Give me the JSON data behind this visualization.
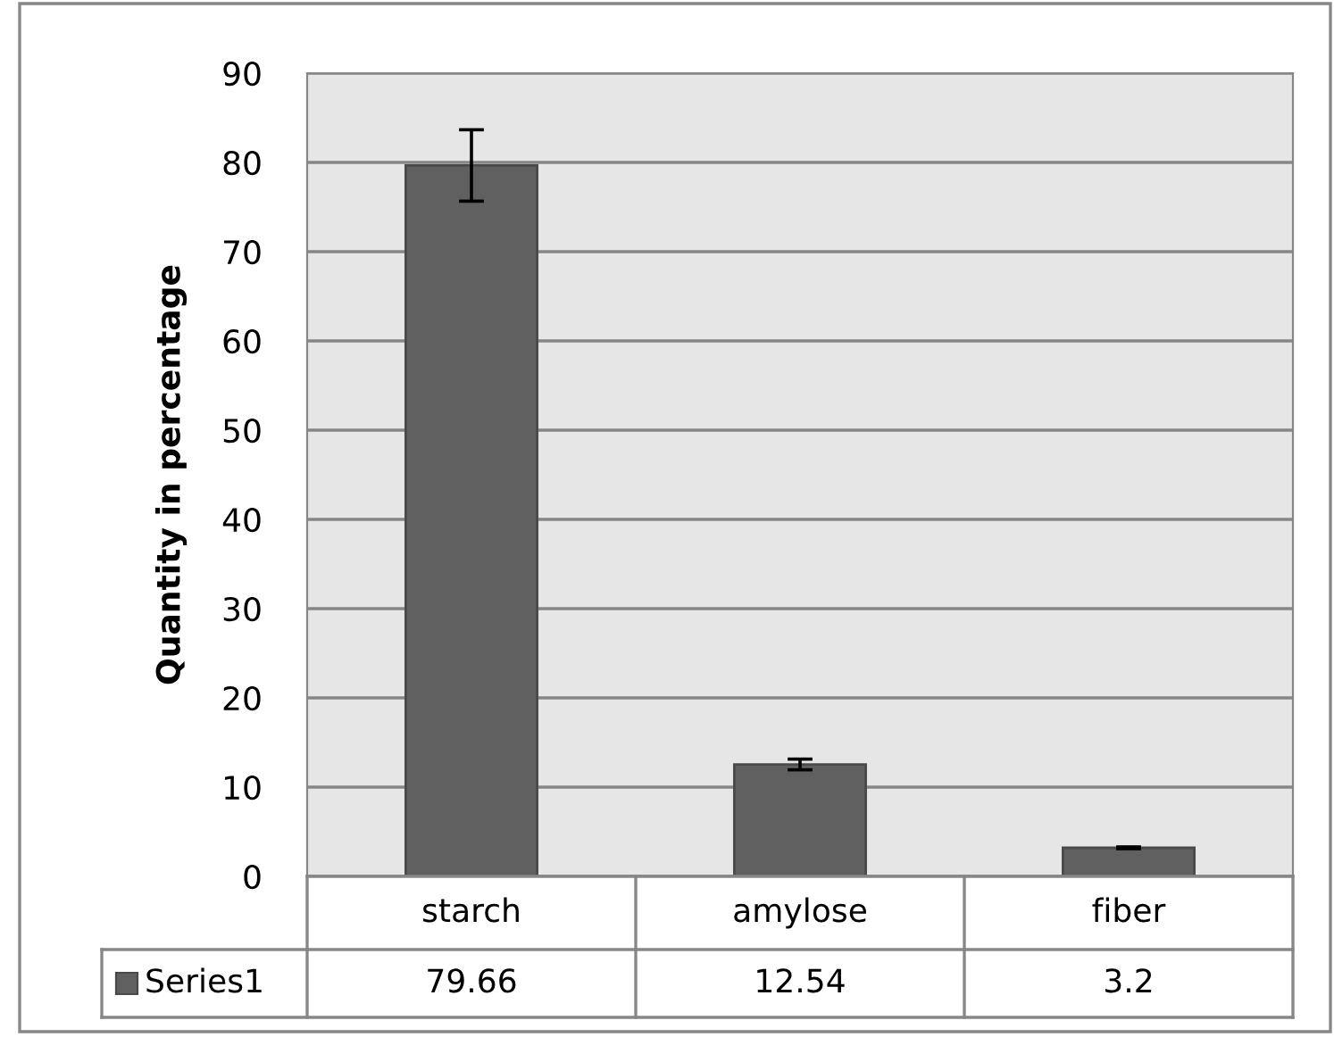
{
  "chart_data": {
    "type": "bar",
    "ylabel": "Quantity in percentage",
    "categories": [
      "starch",
      "amylose",
      "fiber"
    ],
    "series": [
      {
        "name": "Series1",
        "color": "#606060",
        "values": [
          79.66,
          12.54,
          3.2
        ],
        "errors": [
          4,
          0.6,
          0.1
        ]
      }
    ],
    "ylim": [
      0,
      90
    ],
    "yticks": [
      0,
      10,
      20,
      30,
      40,
      50,
      60,
      70,
      80,
      90
    ],
    "grid": "y",
    "legend": "bottom",
    "data_labels": true
  }
}
